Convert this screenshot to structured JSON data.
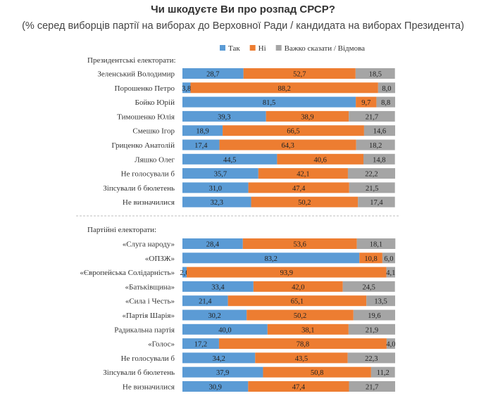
{
  "title": "Чи шкодуєте Ви про розпад СРСР?",
  "subtitle": "(% серед виборців партії на виборах до Верховної Ради / кандидата на виборах Президента)",
  "colors": {
    "yes": "#5b9bd5",
    "no": "#ed7d31",
    "hard": "#a5a5a5"
  },
  "chart_data": {
    "type": "bar",
    "orientation": "horizontal",
    "stacked": true,
    "xlim": [
      0,
      100
    ],
    "legend_position": "top",
    "series": [
      {
        "name": "Так",
        "color": "#5b9bd5"
      },
      {
        "name": "Ні",
        "color": "#ed7d31"
      },
      {
        "name": "Важко сказати / Відмова",
        "color": "#a5a5a5"
      }
    ],
    "groups": [
      {
        "heading": "Президентські електорати:",
        "rows": [
          {
            "label": "Зеленський Володимир",
            "values": [
              28.7,
              52.7,
              18.5
            ],
            "texts": [
              "28,7",
              "52,7",
              "18,5"
            ]
          },
          {
            "label": "Порошенко Петро",
            "values": [
              3.8,
              88.2,
              8.0
            ],
            "texts": [
              "3,8",
              "88,2",
              "8,0"
            ]
          },
          {
            "label": "Бойко Юрій",
            "values": [
              81.5,
              9.7,
              8.8
            ],
            "texts": [
              "81,5",
              "9,7",
              "8,8"
            ]
          },
          {
            "label": "Тимошенко Юлія",
            "values": [
              39.3,
              38.9,
              21.7
            ],
            "texts": [
              "39,3",
              "38,9",
              "21,7"
            ]
          },
          {
            "label": "Смешко Ігор",
            "values": [
              18.9,
              66.5,
              14.6
            ],
            "texts": [
              "18,9",
              "66,5",
              "14,6"
            ]
          },
          {
            "label": "Гриценко Анатолій",
            "values": [
              17.4,
              64.3,
              18.2
            ],
            "texts": [
              "17,4",
              "64,3",
              "18,2"
            ]
          },
          {
            "label": "Ляшко Олег",
            "values": [
              44.5,
              40.6,
              14.8
            ],
            "texts": [
              "44,5",
              "40,6",
              "14,8"
            ]
          },
          {
            "label": "Не голосували б",
            "values": [
              35.7,
              42.1,
              22.2
            ],
            "texts": [
              "35,7",
              "42,1",
              "22,2"
            ]
          },
          {
            "label": "Зіпсували б бюлетень",
            "values": [
              31.0,
              47.4,
              21.5
            ],
            "texts": [
              "31,0",
              "47,4",
              "21,5"
            ]
          },
          {
            "label": "Не визначилися",
            "values": [
              32.3,
              50.2,
              17.4
            ],
            "texts": [
              "32,3",
              "50,2",
              "17,4"
            ]
          }
        ]
      },
      {
        "heading": "Партійні електорати:",
        "rows": [
          {
            "label": "«Слуга народу»",
            "values": [
              28.4,
              53.6,
              18.1
            ],
            "texts": [
              "28,4",
              "53,6",
              "18,1"
            ]
          },
          {
            "label": "«ОПЗЖ»",
            "values": [
              83.2,
              10.8,
              6.0
            ],
            "texts": [
              "83,2",
              "10,8",
              "6,0"
            ]
          },
          {
            "label": "«Європейська Солідарність»",
            "values": [
              2.0,
              93.9,
              4.1
            ],
            "texts": [
              "2,0",
              "93,9",
              "4,1"
            ]
          },
          {
            "label": "«Батьківщина»",
            "values": [
              33.4,
              42.0,
              24.5
            ],
            "texts": [
              "33,4",
              "42,0",
              "24,5"
            ]
          },
          {
            "label": "«Сила і Честь»",
            "values": [
              21.4,
              65.1,
              13.5
            ],
            "texts": [
              "21,4",
              "65,1",
              "13,5"
            ]
          },
          {
            "label": "«Партія Шарія»",
            "values": [
              30.2,
              50.2,
              19.6
            ],
            "texts": [
              "30,2",
              "50,2",
              "19,6"
            ]
          },
          {
            "label": "Радикальна партія",
            "values": [
              40.0,
              38.1,
              21.9
            ],
            "texts": [
              "40,0",
              "38,1",
              "21,9"
            ]
          },
          {
            "label": "«Голос»",
            "values": [
              17.2,
              78.8,
              4.0
            ],
            "texts": [
              "17,2",
              "78,8",
              "4,0"
            ]
          },
          {
            "label": "Не голосували б",
            "values": [
              34.2,
              43.5,
              22.3
            ],
            "texts": [
              "34,2",
              "43,5",
              "22,3"
            ]
          },
          {
            "label": "Зіпсували б бюлетень",
            "values": [
              37.9,
              50.8,
              11.2
            ],
            "texts": [
              "37,9",
              "50,8",
              "11,2"
            ]
          },
          {
            "label": "Не визначилися",
            "values": [
              30.9,
              47.4,
              21.7
            ],
            "texts": [
              "30,9",
              "47,4",
              "21,7"
            ]
          }
        ]
      }
    ]
  }
}
